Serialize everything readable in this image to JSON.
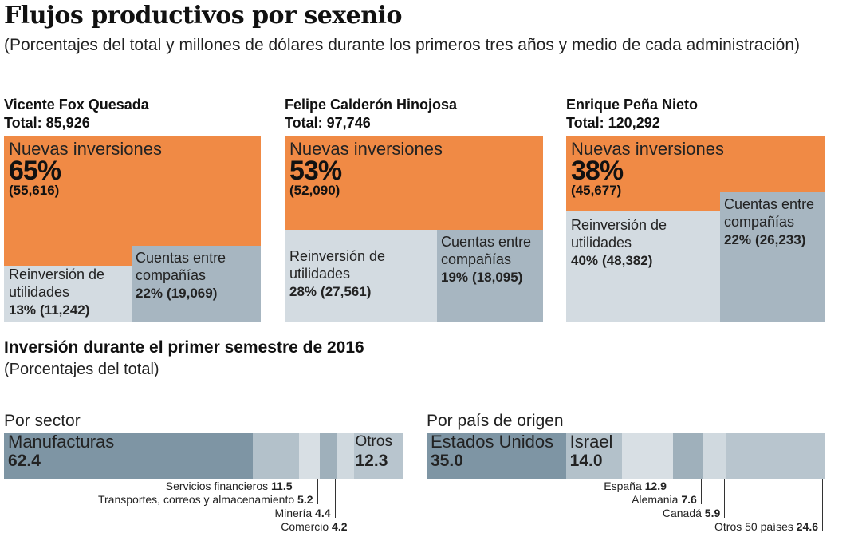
{
  "title": "Flujos productivos por sexenio",
  "subtitle": "(Porcentajes del total y millones de dólares durante los primeros tres años y medio de cada administración)",
  "colors": {
    "nuevas": "#f08a45",
    "reinversion": "#d3dbe1",
    "cuentas": "#a7b6c1",
    "bar_dark": "#7e95a4"
  },
  "chart_data": [
    {
      "type": "treemap",
      "panels": [
        {
          "president": "Vicente Fox Quesada",
          "total_label": "Total: 85,926",
          "total": 85926,
          "items": [
            {
              "name": "Nuevas inversiones",
              "pct_label": "65%",
              "value_label": "(55,616)",
              "pct": 65,
              "value": 55616
            },
            {
              "name": "Reinversión de utilidades",
              "pct_label": "13%",
              "value_label": "(11,242)",
              "pct": 13,
              "value": 11242
            },
            {
              "name": "Cuentas entre compañías",
              "pct_label": "22%",
              "value_label": "(19,069)",
              "pct": 22,
              "value": 19069
            }
          ]
        },
        {
          "president": "Felipe Calderón Hinojosa",
          "total_label": "Total: 97,746",
          "total": 97746,
          "items": [
            {
              "name": "Nuevas inversiones",
              "pct_label": "53%",
              "value_label": "(52,090)",
              "pct": 53,
              "value": 52090
            },
            {
              "name": "Reinversión de utilidades",
              "pct_label": "28%",
              "value_label": "(27,561)",
              "pct": 28,
              "value": 27561
            },
            {
              "name": "Cuentas entre compañías",
              "pct_label": "19%",
              "value_label": "(18,095)",
              "pct": 19,
              "value": 18095
            }
          ]
        },
        {
          "president": "Enrique Peña Nieto",
          "total_label": "Total: 120,292",
          "total": 120292,
          "items": [
            {
              "name": "Nuevas inversiones",
              "pct_label": "38%",
              "value_label": "(45,677)",
              "pct": 38,
              "value": 45677
            },
            {
              "name": "Reinversión de utilidades",
              "pct_label": "40%",
              "value_label": "(48,382)",
              "pct": 40,
              "value": 48382
            },
            {
              "name": "Cuentas entre compañías",
              "pct_label": "22%",
              "value_label": "(26,233)",
              "pct": 22,
              "value": 26233
            }
          ]
        }
      ]
    },
    {
      "type": "bar",
      "title": "Inversión durante el primer semestre de 2016",
      "subtitle": "(Porcentajes del total)",
      "groups": [
        {
          "name": "Por sector",
          "categories": [
            "Manufacturas",
            "Servicios financieros",
            "Transportes, correos y almacenamiento",
            "Minería",
            "Comercio",
            "Otros"
          ],
          "values": [
            62.4,
            11.5,
            5.2,
            4.4,
            4.2,
            12.3
          ],
          "value_labels": [
            "62.4",
            "11.5",
            "5.2",
            "4.4",
            "4.2",
            "12.3"
          ]
        },
        {
          "name": "Por país de origen",
          "categories": [
            "Estados Unidos",
            "Israel",
            "España",
            "Alemania",
            "Canadá",
            "Otros 50 países"
          ],
          "values": [
            35.0,
            14.0,
            12.9,
            7.6,
            5.9,
            24.6
          ],
          "value_labels": [
            "35.0",
            "14.0",
            "12.9",
            "7.6",
            "5.9",
            "24.6"
          ]
        }
      ]
    }
  ]
}
